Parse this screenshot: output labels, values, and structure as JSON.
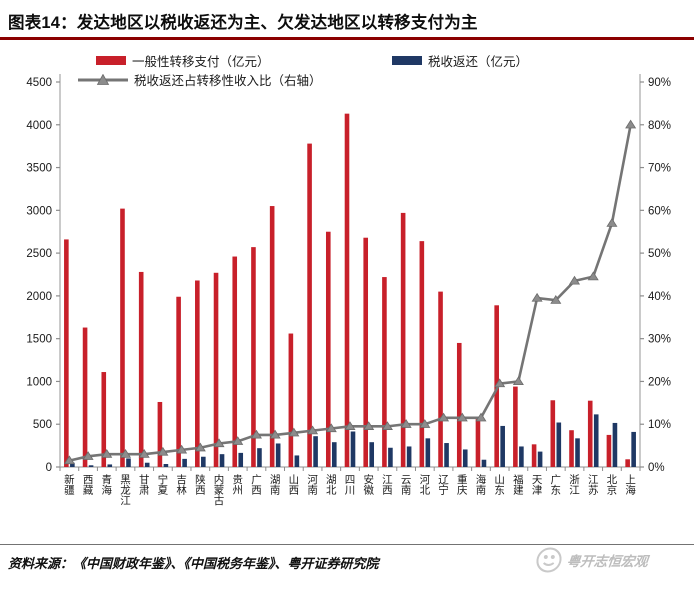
{
  "title": "图表14：发达地区以税收返还为主、欠发达地区以转移支付为主",
  "legend": {
    "transfer_label": "一般性转移支付（亿元）",
    "rebate_label": "税收返还（亿元）",
    "ratio_label": "税收返还占转移性收入比（右轴）"
  },
  "colors": {
    "transfer": "#C8202A",
    "rebate": "#1F3864",
    "ratio_line": "#757575",
    "ratio_marker": "#8C8C8C",
    "axis": "#A6A6A6",
    "tick": "#8C8C8C",
    "title_rule": "#8B0000",
    "watermark": "#BDBDBD"
  },
  "chart_data": {
    "type": "bar",
    "title": "图表14：发达地区以税收返还为主、欠发达地区以转移支付为主",
    "categories": [
      "新疆",
      "西藏",
      "青海",
      "黑龙江",
      "甘肃",
      "宁夏",
      "吉林",
      "陕西",
      "内蒙古",
      "贵州",
      "广西",
      "湖南",
      "山西",
      "河南",
      "湖北",
      "四川",
      "安徽",
      "江西",
      "云南",
      "河北",
      "辽宁",
      "重庆",
      "海南",
      "山东",
      "福建",
      "天津",
      "广东",
      "浙江",
      "江苏",
      "北京",
      "上海"
    ],
    "series": [
      {
        "name": "一般性转移支付（亿元）",
        "type": "bar",
        "axis": "left",
        "values": [
          2660,
          1630,
          1110,
          3020,
          2280,
          760,
          1990,
          2180,
          2270,
          2460,
          2570,
          3050,
          1560,
          3780,
          2750,
          4130,
          2680,
          2220,
          2970,
          2640,
          2050,
          1450,
          560,
          1890,
          940,
          265,
          780,
          430,
          775,
          375,
          90
        ]
      },
      {
        "name": "税收返还（亿元）",
        "type": "bar",
        "axis": "left",
        "values": [
          50,
          20,
          30,
          100,
          50,
          35,
          95,
          120,
          150,
          165,
          220,
          275,
          135,
          360,
          290,
          415,
          290,
          225,
          240,
          335,
          280,
          205,
          85,
          480,
          240,
          180,
          520,
          335,
          615,
          515,
          410
        ]
      },
      {
        "name": "税收返还占转移性收入比（右轴）",
        "type": "line",
        "axis": "right",
        "unit": "%",
        "values": [
          1.5,
          2.5,
          3,
          3,
          3,
          3.5,
          4,
          4.5,
          5.5,
          6,
          7.5,
          7.5,
          8,
          8.5,
          9,
          9.5,
          9.5,
          9.5,
          10,
          10,
          11.5,
          11.5,
          11.5,
          19.5,
          20,
          39.5,
          39,
          43.5,
          44.5,
          57,
          80
        ]
      }
    ],
    "left_axis": {
      "min": 0,
      "max": 4500,
      "step": 500,
      "ticks": [
        "0",
        "500",
        "1000",
        "1500",
        "2000",
        "2500",
        "3000",
        "3500",
        "4000",
        "4500"
      ]
    },
    "right_axis": {
      "min": 0,
      "max": 90,
      "step": 10,
      "unit": "%",
      "ticks": [
        "0%",
        "10%",
        "20%",
        "30%",
        "40%",
        "50%",
        "60%",
        "70%",
        "80%",
        "90%"
      ]
    },
    "grid": false,
    "legend_position": "top"
  },
  "footer": {
    "source": "资料来源：《中国财政年鉴》、《中国税务年鉴》、粤开证券研究院",
    "watermark": "粤开志恒宏观"
  }
}
